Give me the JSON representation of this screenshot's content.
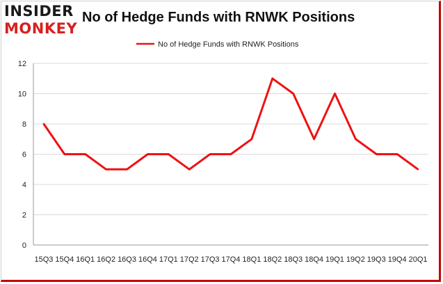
{
  "logo": {
    "line1": "INSIDER",
    "line2": "MONKEY"
  },
  "chart_data": {
    "type": "line",
    "title": "No of Hedge Funds with RNWK Positions",
    "categories": [
      "15Q3",
      "15Q4",
      "16Q1",
      "16Q2",
      "16Q3",
      "16Q4",
      "17Q1",
      "17Q2",
      "17Q3",
      "17Q4",
      "18Q1",
      "18Q2",
      "18Q3",
      "18Q4",
      "19Q1",
      "19Q2",
      "19Q3",
      "19Q4",
      "20Q1"
    ],
    "series": [
      {
        "name": "No of Hedge Funds with RNWK Positions",
        "values": [
          8,
          6,
          6,
          5,
          5,
          6,
          6,
          5,
          6,
          6,
          7,
          11,
          10,
          7,
          10,
          7,
          6,
          6,
          5
        ],
        "color": "#ee1111"
      }
    ],
    "yticks": [
      0,
      2,
      4,
      6,
      8,
      10,
      12
    ],
    "ylim": [
      0,
      12
    ],
    "grid": true,
    "legend": "top-center",
    "xlabel": "",
    "ylabel": ""
  }
}
